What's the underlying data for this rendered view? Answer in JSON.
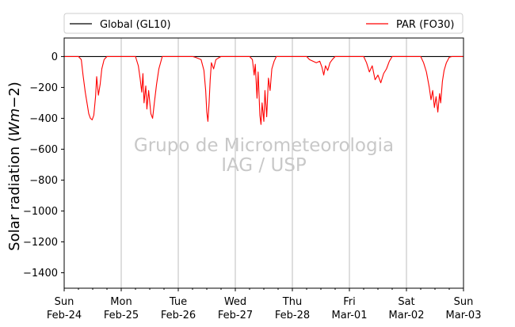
{
  "chart_data": {
    "type": "line",
    "ylabel": "Solar radiation ($Wm{-2}$)",
    "ylabel_display": {
      "prefix": "Solar radiation (",
      "italic": "Wm",
      "minus": "−2",
      "suffix": ")"
    },
    "ylim": [
      -1500,
      120
    ],
    "yticks": [
      0,
      -200,
      -400,
      -600,
      -800,
      -1000,
      -1200,
      -1400
    ],
    "ytick_labels": [
      "0",
      "−200",
      "−400",
      "−600",
      "−800",
      "−1000",
      "−1200",
      "−1400"
    ],
    "xlim": [
      "2019-02-24",
      "2019-03-03"
    ],
    "xticks": [
      {
        "day": "Sun",
        "date": "Feb-24"
      },
      {
        "day": "Mon",
        "date": "Feb-25"
      },
      {
        "day": "Tue",
        "date": "Feb-26"
      },
      {
        "day": "Wed",
        "date": "Feb-27"
      },
      {
        "day": "Thu",
        "date": "Feb-28"
      },
      {
        "day": "Fri",
        "date": "Mar-01"
      },
      {
        "day": "Sat",
        "date": "Mar-02"
      },
      {
        "day": "Sun",
        "date": "Mar-03"
      }
    ],
    "grid": "vertical-major",
    "legend_placement": "top",
    "series": [
      {
        "name": "Global (GL10)",
        "color": "#000000",
        "points": [
          [
            0,
            0
          ],
          [
            7,
            0
          ]
        ]
      },
      {
        "name": "PAR (FO30)",
        "color": "#ff0000",
        "points": [
          [
            0.0,
            0
          ],
          [
            0.25,
            0
          ],
          [
            0.3,
            -20
          ],
          [
            0.33,
            -120
          ],
          [
            0.37,
            -230
          ],
          [
            0.4,
            -300
          ],
          [
            0.43,
            -370
          ],
          [
            0.46,
            -400
          ],
          [
            0.49,
            -410
          ],
          [
            0.52,
            -380
          ],
          [
            0.55,
            -260
          ],
          [
            0.57,
            -130
          ],
          [
            0.6,
            -250
          ],
          [
            0.63,
            -180
          ],
          [
            0.66,
            -80
          ],
          [
            0.7,
            -20
          ],
          [
            0.75,
            0
          ],
          [
            1.25,
            0
          ],
          [
            1.3,
            -60
          ],
          [
            1.33,
            -140
          ],
          [
            1.36,
            -230
          ],
          [
            1.38,
            -110
          ],
          [
            1.4,
            -300
          ],
          [
            1.43,
            -190
          ],
          [
            1.45,
            -340
          ],
          [
            1.48,
            -220
          ],
          [
            1.52,
            -370
          ],
          [
            1.55,
            -400
          ],
          [
            1.58,
            -300
          ],
          [
            1.62,
            -180
          ],
          [
            1.66,
            -80
          ],
          [
            1.72,
            0
          ],
          [
            2.25,
            0
          ],
          [
            2.3,
            -5
          ],
          [
            2.4,
            -20
          ],
          [
            2.45,
            -90
          ],
          [
            2.48,
            -220
          ],
          [
            2.5,
            -360
          ],
          [
            2.52,
            -420
          ],
          [
            2.54,
            -300
          ],
          [
            2.56,
            -150
          ],
          [
            2.58,
            -40
          ],
          [
            2.62,
            -80
          ],
          [
            2.66,
            -20
          ],
          [
            2.7,
            -10
          ],
          [
            2.75,
            0
          ],
          [
            3.25,
            0
          ],
          [
            3.3,
            -20
          ],
          [
            3.33,
            -120
          ],
          [
            3.35,
            -50
          ],
          [
            3.38,
            -270
          ],
          [
            3.4,
            -100
          ],
          [
            3.43,
            -380
          ],
          [
            3.45,
            -440
          ],
          [
            3.47,
            -300
          ],
          [
            3.5,
            -420
          ],
          [
            3.52,
            -220
          ],
          [
            3.55,
            -390
          ],
          [
            3.58,
            -140
          ],
          [
            3.61,
            -220
          ],
          [
            3.64,
            -80
          ],
          [
            3.68,
            -30
          ],
          [
            3.72,
            0
          ],
          [
            4.25,
            0
          ],
          [
            4.3,
            -20
          ],
          [
            4.36,
            -30
          ],
          [
            4.42,
            -40
          ],
          [
            4.48,
            -30
          ],
          [
            4.52,
            -70
          ],
          [
            4.55,
            -120
          ],
          [
            4.58,
            -60
          ],
          [
            4.62,
            -90
          ],
          [
            4.66,
            -40
          ],
          [
            4.7,
            -20
          ],
          [
            4.75,
            0
          ],
          [
            5.25,
            0
          ],
          [
            5.3,
            -40
          ],
          [
            5.35,
            -100
          ],
          [
            5.4,
            -60
          ],
          [
            5.45,
            -150
          ],
          [
            5.5,
            -120
          ],
          [
            5.55,
            -170
          ],
          [
            5.6,
            -110
          ],
          [
            5.65,
            -80
          ],
          [
            5.7,
            -30
          ],
          [
            5.75,
            0
          ],
          [
            6.25,
            0
          ],
          [
            6.3,
            -40
          ],
          [
            6.35,
            -100
          ],
          [
            6.4,
            -200
          ],
          [
            6.43,
            -280
          ],
          [
            6.46,
            -220
          ],
          [
            6.49,
            -330
          ],
          [
            6.52,
            -260
          ],
          [
            6.55,
            -360
          ],
          [
            6.58,
            -240
          ],
          [
            6.6,
            -300
          ],
          [
            6.63,
            -160
          ],
          [
            6.66,
            -90
          ],
          [
            6.7,
            -40
          ],
          [
            6.75,
            -5
          ],
          [
            6.8,
            0
          ],
          [
            7.0,
            0
          ]
        ]
      }
    ],
    "watermark": [
      "Grupo de Micrometeorologia",
      "IAG / USP"
    ]
  }
}
